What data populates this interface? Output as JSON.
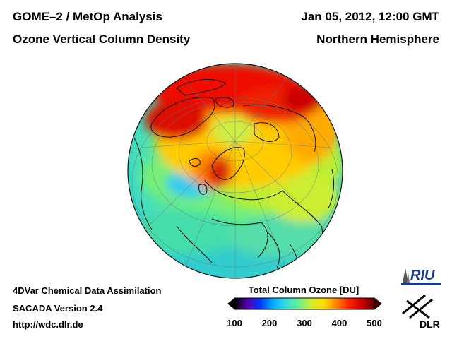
{
  "header": {
    "title": "GOME–2 / MetOp Analysis",
    "subtitle": "Ozone Vertical Column Density",
    "datetime": "Jan 05, 2012, 12:00 GMT",
    "region": "Northern Hemisphere"
  },
  "footer": {
    "line1": "4DVar Chemical Data Assimilation",
    "line2": "SACADA Version 2.4",
    "url": "http://wdc.dlr.de"
  },
  "colorbar": {
    "title": "Total Column Ozone [DU]",
    "min": 100,
    "max": 500,
    "ticks": [
      "100",
      "200",
      "300",
      "400",
      "500"
    ],
    "colors": [
      "#000000",
      "#5500aa",
      "#0033ff",
      "#00aaff",
      "#33dddd",
      "#66ee99",
      "#ccee33",
      "#ffdd00",
      "#ff8800",
      "#ff2200",
      "#cc0000",
      "#660000"
    ]
  },
  "logos": {
    "riu": "RIU",
    "dlr": "DLR"
  },
  "map": {
    "projection": "orthographic",
    "hemisphere": "north"
  }
}
